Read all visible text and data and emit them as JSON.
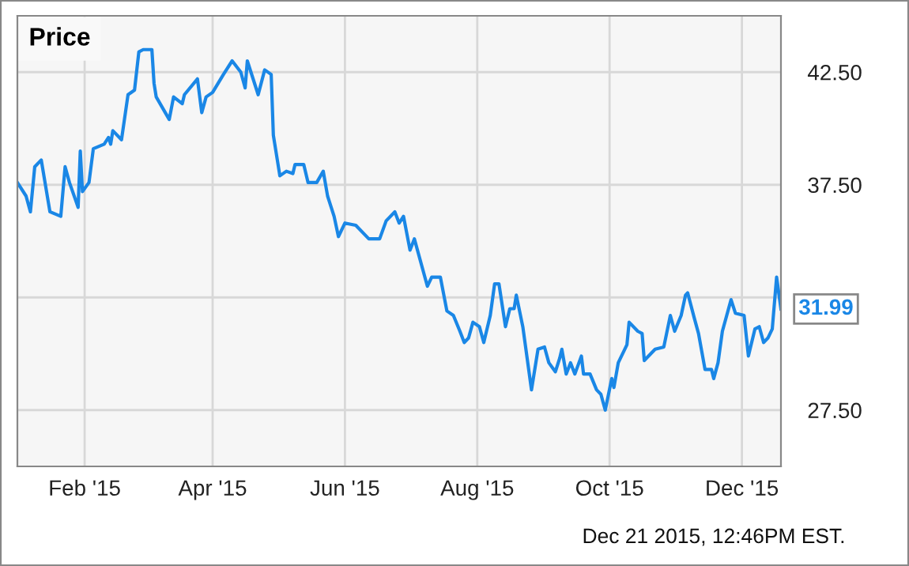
{
  "chart_data": {
    "type": "line",
    "title": "Price",
    "x": [
      "2015-01-01",
      "2015-01-05",
      "2015-01-07",
      "2015-01-09",
      "2015-01-12",
      "2015-01-16",
      "2015-01-21",
      "2015-01-23",
      "2015-01-25",
      "2015-01-29",
      "2015-01-30",
      "2015-01-31",
      "2015-02-03",
      "2015-02-05",
      "2015-02-10",
      "2015-02-12",
      "2015-02-13",
      "2015-02-14",
      "2015-02-18",
      "2015-02-21",
      "2015-02-24",
      "2015-02-26",
      "2015-02-28",
      "2015-03-04",
      "2015-03-05",
      "2015-03-06",
      "2015-03-12",
      "2015-03-14",
      "2015-03-18",
      "2015-03-19",
      "2015-03-25",
      "2015-03-27",
      "2015-03-29",
      "2015-04-01",
      "2015-04-06",
      "2015-04-10",
      "2015-04-14",
      "2015-04-16",
      "2015-04-17",
      "2015-04-22",
      "2015-04-25",
      "2015-04-28",
      "2015-04-29",
      "2015-05-01",
      "2015-05-02",
      "2015-05-05",
      "2015-05-08",
      "2015-05-09",
      "2015-05-13",
      "2015-05-15",
      "2015-05-19",
      "2015-05-22",
      "2015-05-24",
      "2015-05-27",
      "2015-05-29",
      "2015-06-01",
      "2015-06-06",
      "2015-06-12",
      "2015-06-17",
      "2015-06-20",
      "2015-06-24",
      "2015-06-26",
      "2015-06-28",
      "2015-07-01",
      "2015-07-03",
      "2015-07-09",
      "2015-07-11",
      "2015-07-15",
      "2015-07-18",
      "2015-07-21",
      "2015-07-24",
      "2015-07-26",
      "2015-07-28",
      "2015-07-30",
      "2015-08-02",
      "2015-08-04",
      "2015-08-07",
      "2015-08-09",
      "2015-08-11",
      "2015-08-14",
      "2015-08-16",
      "2015-08-18",
      "2015-08-19",
      "2015-08-22",
      "2015-08-26",
      "2015-08-29",
      "2015-09-01",
      "2015-09-03",
      "2015-09-06",
      "2015-09-08",
      "2015-09-09",
      "2015-09-11",
      "2015-09-13",
      "2015-09-15",
      "2015-09-18",
      "2015-09-19",
      "2015-09-22",
      "2015-09-25",
      "2015-09-27",
      "2015-09-29",
      "2015-10-02",
      "2015-10-03",
      "2015-10-05",
      "2015-10-09",
      "2015-10-10",
      "2015-10-14",
      "2015-10-16",
      "2015-10-17",
      "2015-10-22",
      "2015-10-26",
      "2015-10-29",
      "2015-10-31",
      "2015-11-03",
      "2015-11-05",
      "2015-11-06",
      "2015-11-09",
      "2015-11-11",
      "2015-11-14",
      "2015-11-17",
      "2015-11-18",
      "2015-11-20",
      "2015-11-22",
      "2015-11-26",
      "2015-11-28",
      "2015-12-02",
      "2015-12-04",
      "2015-12-07",
      "2015-12-09",
      "2015-12-11",
      "2015-12-13",
      "2015-12-15",
      "2015-12-17",
      "2015-12-19"
    ],
    "series": [
      {
        "color": "#1a87e6",
        "values": [
          37.6,
          37.0,
          36.3,
          38.3,
          38.6,
          36.3,
          36.1,
          38.3,
          37.6,
          36.5,
          39.0,
          37.2,
          37.6,
          39.1,
          39.3,
          39.6,
          39.3,
          39.9,
          39.5,
          41.5,
          41.7,
          43.4,
          43.5,
          43.5,
          42.0,
          41.4,
          40.4,
          41.4,
          41.1,
          41.5,
          42.2,
          40.7,
          41.4,
          41.6,
          42.4,
          43.0,
          42.5,
          41.8,
          43.0,
          41.5,
          42.6,
          42.4,
          39.7,
          38.5,
          37.9,
          38.1,
          38.0,
          38.4,
          38.4,
          37.6,
          37.6,
          38.1,
          37.0,
          36.1,
          35.2,
          35.8,
          35.7,
          35.1,
          35.1,
          35.9,
          36.3,
          35.8,
          36.1,
          34.6,
          35.1,
          33.0,
          33.4,
          33.4,
          31.9,
          31.7,
          31.0,
          30.5,
          30.7,
          31.4,
          31.2,
          30.5,
          31.7,
          33.1,
          33.1,
          31.2,
          32.0,
          32.0,
          32.6,
          31.2,
          28.4,
          30.2,
          30.3,
          29.6,
          29.2,
          29.8,
          30.2,
          29.1,
          29.6,
          29.1,
          29.9,
          29.1,
          29.1,
          28.4,
          28.2,
          27.5,
          28.9,
          28.5,
          29.6,
          30.4,
          31.4,
          31.0,
          30.9,
          29.7,
          30.2,
          30.3,
          31.7,
          31.0,
          31.7,
          32.6,
          32.7,
          31.6,
          30.9,
          29.3,
          29.3,
          28.9,
          29.6,
          31.0,
          32.4,
          31.8,
          31.7,
          29.9,
          31.1,
          31.2,
          30.5,
          30.7,
          31.1,
          33.4,
          31.99
        ],
        "value_labels": [
          null,
          null,
          null,
          null,
          null,
          null,
          null,
          null,
          null,
          null,
          null,
          null,
          null,
          null,
          null,
          null,
          null,
          null,
          null,
          null,
          null,
          null,
          null,
          null,
          null,
          null,
          null,
          null,
          null,
          null,
          null,
          null,
          null,
          null,
          null,
          null,
          null,
          null,
          null,
          null,
          null,
          null,
          null,
          null,
          null,
          null,
          null,
          null,
          null,
          null,
          null,
          null,
          null,
          null,
          null,
          null,
          null,
          null,
          null,
          null,
          null,
          null,
          null,
          null,
          null,
          null,
          null,
          null,
          null,
          null,
          null,
          null,
          null,
          null,
          null,
          null,
          null,
          null,
          null,
          null,
          null,
          null,
          null,
          null,
          null,
          null,
          null,
          null,
          null,
          null,
          null,
          null,
          null,
          null,
          null,
          null,
          null,
          null,
          null,
          null,
          null,
          null,
          null,
          null,
          null,
          null,
          null,
          null,
          null,
          null,
          null,
          null,
          null,
          null,
          null,
          null,
          null,
          null,
          null,
          null,
          null,
          null,
          null,
          null,
          null,
          null,
          null,
          null,
          null,
          null,
          null,
          null,
          "31.99"
        ]
      }
    ],
    "xlim": [
      "2015-01-01",
      "2015-12-19"
    ],
    "xticks": [
      {
        "value": "2015-02-01",
        "label": "Feb '15"
      },
      {
        "value": "2015-04-01",
        "label": "Apr '15"
      },
      {
        "value": "2015-06-01",
        "label": "Jun '15"
      },
      {
        "value": "2015-08-01",
        "label": "Aug '15"
      },
      {
        "value": "2015-10-01",
        "label": "Oct '15"
      },
      {
        "value": "2015-12-01",
        "label": "Dec '15"
      }
    ],
    "ylim": [
      25,
      45
    ],
    "yticks": [
      {
        "value": 27.5,
        "label": "27.50"
      },
      {
        "value": 32.5,
        "label": null
      },
      {
        "value": 37.5,
        "label": "37.50"
      },
      {
        "value": 42.5,
        "label": "42.50"
      }
    ],
    "grid": true,
    "legend": false,
    "marker": "none",
    "line_style": "solid",
    "annotations": [
      "Dec 21 2015, 12:46PM EST."
    ]
  }
}
